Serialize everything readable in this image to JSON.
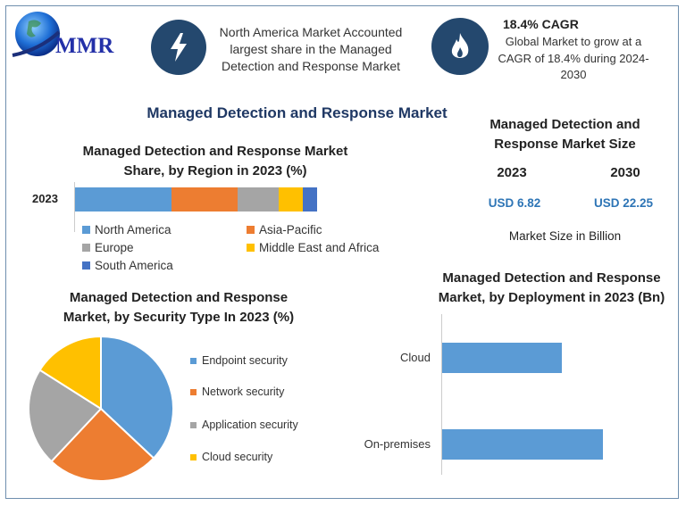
{
  "logo": {
    "text": "MMR"
  },
  "header": {
    "highlight1": {
      "icon": "lightning-bolt-icon",
      "lines": [
        "North America Market Accounted",
        "largest share in the Managed",
        "Detection and Response Market"
      ]
    },
    "highlight2": {
      "icon": "flame-icon",
      "title": "18.4% CAGR",
      "lines": [
        "Global Market to grow at a",
        "CAGR of 18.4% during 2024-",
        "2030"
      ]
    }
  },
  "main_title": "Managed Detection and Response Market",
  "market_size": {
    "title_lines": [
      "Managed Detection and",
      "Response Market Size"
    ],
    "years": [
      "2023",
      "2030"
    ],
    "values": [
      "USD 6.82",
      "USD 22.25"
    ],
    "unit_note": "Market Size in Billion",
    "value_color": "#2e75b6"
  },
  "chart_data": [
    {
      "type": "bar",
      "orientation": "horizontal-stacked",
      "title_lines": [
        "Managed Detection and Response Market",
        "Share, by Region in 2023 (%)"
      ],
      "categories": [
        "2023"
      ],
      "series": [
        {
          "name": "North America",
          "values": [
            40
          ],
          "color": "#5b9bd5"
        },
        {
          "name": "Asia-Pacific",
          "values": [
            27
          ],
          "color": "#ed7d31"
        },
        {
          "name": "Europe",
          "values": [
            17
          ],
          "color": "#a5a5a5"
        },
        {
          "name": "Middle East and Africa",
          "values": [
            10
          ],
          "color": "#ffc000"
        },
        {
          "name": "South America",
          "values": [
            6
          ],
          "color": "#4472c4"
        }
      ],
      "legend": "bottom"
    },
    {
      "type": "pie",
      "title_lines": [
        "Managed Detection and Response",
        "Market, by Security Type In 2023 (%)"
      ],
      "slices": [
        {
          "name": "Endpoint security",
          "value": 37,
          "color": "#5b9bd5"
        },
        {
          "name": "Network security",
          "value": 25,
          "color": "#ed7d31"
        },
        {
          "name": "Application security",
          "value": 22,
          "color": "#a5a5a5"
        },
        {
          "name": "Cloud security",
          "value": 16,
          "color": "#ffc000"
        }
      ],
      "legend": "right"
    },
    {
      "type": "bar",
      "orientation": "horizontal",
      "title_lines": [
        "Managed Detection and Response",
        "Market, by Deployment in 2023 (Bn)"
      ],
      "categories": [
        "Cloud",
        "On-premises"
      ],
      "values": [
        2.9,
        3.9
      ],
      "color": "#5b9bd5",
      "grid": false
    }
  ]
}
